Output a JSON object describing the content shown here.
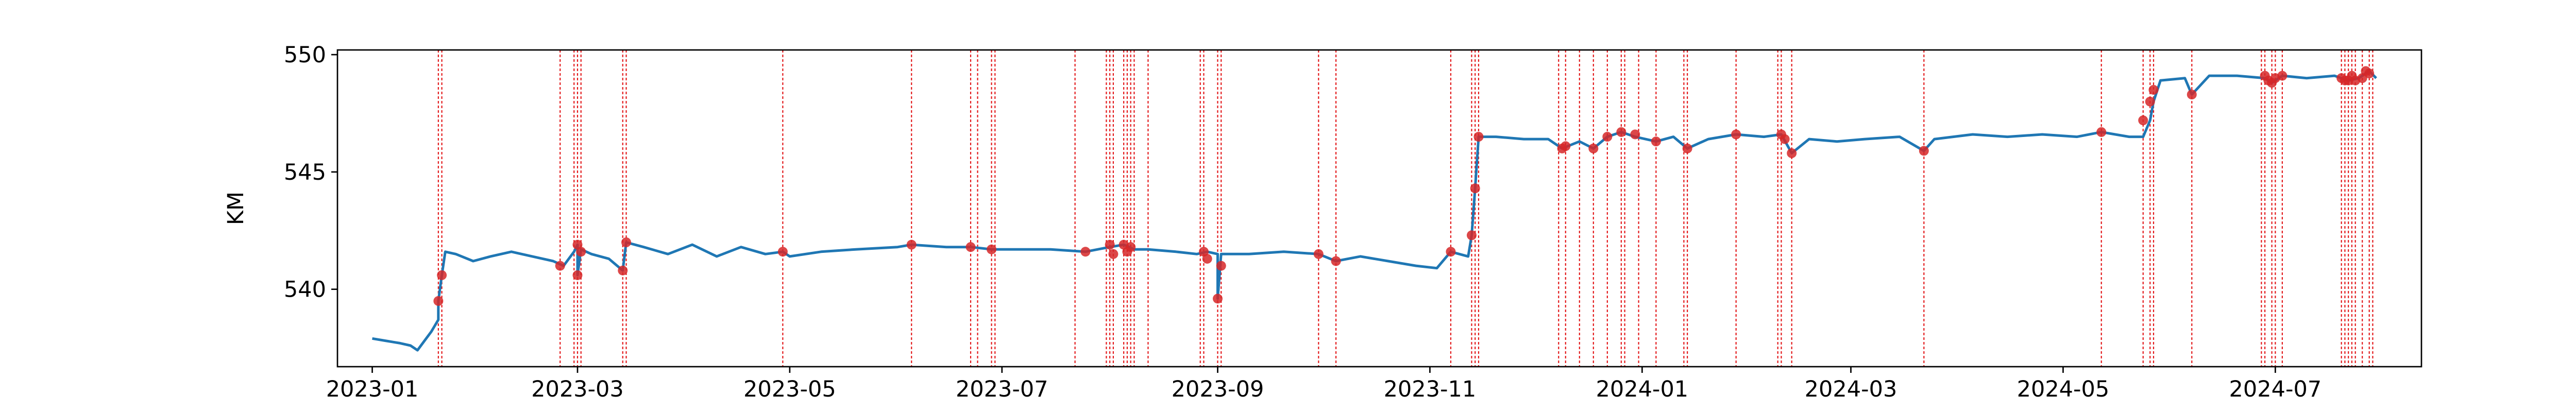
{
  "chart_data": {
    "type": "line",
    "title": "",
    "xlabel": "",
    "ylabel": "KM",
    "x_range": [
      "2022-12-22",
      "2024-08-12"
    ],
    "ylim": [
      536.7,
      550.2
    ],
    "yticks": [
      540,
      545,
      550
    ],
    "ytick_labels": [
      "540",
      "545",
      "550"
    ],
    "xticks": [
      "2023-01-01",
      "2023-03-01",
      "2023-05-01",
      "2023-07-01",
      "2023-09-01",
      "2023-11-01",
      "2024-01-01",
      "2024-03-01",
      "2024-05-01",
      "2024-07-01"
    ],
    "xtick_labels": [
      "2023-01",
      "2023-03",
      "2023-05",
      "2023-07",
      "2023-09",
      "2023-11",
      "2024-01",
      "2024-03",
      "2024-05",
      "2024-07"
    ],
    "grid": false,
    "legend": "none",
    "colors": {
      "line": "#1f77b4",
      "anomaly_point": "#d62728",
      "event_line": "#e31a1c"
    },
    "series": [
      {
        "values": [
          [
            "2023-01-01",
            537.9
          ],
          [
            "2023-01-05",
            537.8
          ],
          [
            "2023-01-09",
            537.7
          ],
          [
            "2023-01-12",
            537.6
          ],
          [
            "2023-01-14",
            537.4
          ],
          [
            "2023-01-16",
            537.8
          ],
          [
            "2023-01-18",
            538.2
          ],
          [
            "2023-01-20",
            538.7
          ],
          [
            "2023-01-20",
            539.5
          ],
          [
            "2023-01-21",
            540.6
          ],
          [
            "2023-01-22",
            541.6
          ],
          [
            "2023-01-25",
            541.5
          ],
          [
            "2023-01-30",
            541.2
          ],
          [
            "2023-02-04",
            541.4
          ],
          [
            "2023-02-10",
            541.6
          ],
          [
            "2023-02-16",
            541.4
          ],
          [
            "2023-02-22",
            541.2
          ],
          [
            "2023-02-25",
            541.0
          ],
          [
            "2023-02-28",
            541.6
          ],
          [
            "2023-03-01",
            541.9
          ],
          [
            "2023-03-01",
            540.6
          ],
          [
            "2023-03-02",
            541.7
          ],
          [
            "2023-03-05",
            541.5
          ],
          [
            "2023-03-10",
            541.3
          ],
          [
            "2023-03-14",
            540.8
          ],
          [
            "2023-03-15",
            542.0
          ],
          [
            "2023-03-20",
            541.8
          ],
          [
            "2023-03-27",
            541.5
          ],
          [
            "2023-04-03",
            541.9
          ],
          [
            "2023-04-10",
            541.4
          ],
          [
            "2023-04-17",
            541.8
          ],
          [
            "2023-04-24",
            541.5
          ],
          [
            "2023-04-29",
            541.6
          ],
          [
            "2023-05-01",
            541.4
          ],
          [
            "2023-05-10",
            541.6
          ],
          [
            "2023-05-20",
            541.7
          ],
          [
            "2023-06-01",
            541.8
          ],
          [
            "2023-06-05",
            541.9
          ],
          [
            "2023-06-15",
            541.8
          ],
          [
            "2023-06-22",
            541.8
          ],
          [
            "2023-06-28",
            541.7
          ],
          [
            "2023-07-05",
            541.7
          ],
          [
            "2023-07-15",
            541.7
          ],
          [
            "2023-07-25",
            541.6
          ],
          [
            "2023-08-01",
            541.8
          ],
          [
            "2023-08-05",
            541.9
          ],
          [
            "2023-08-08",
            541.7
          ],
          [
            "2023-08-12",
            541.7
          ],
          [
            "2023-08-20",
            541.6
          ],
          [
            "2023-08-26",
            541.5
          ],
          [
            "2023-08-29",
            541.6
          ],
          [
            "2023-09-01",
            541.5
          ],
          [
            "2023-09-01",
            539.6
          ],
          [
            "2023-09-02",
            541.5
          ],
          [
            "2023-09-10",
            541.5
          ],
          [
            "2023-09-20",
            541.6
          ],
          [
            "2023-09-30",
            541.5
          ],
          [
            "2023-10-05",
            541.2
          ],
          [
            "2023-10-12",
            541.4
          ],
          [
            "2023-10-20",
            541.2
          ],
          [
            "2023-10-28",
            541.0
          ],
          [
            "2023-11-03",
            540.9
          ],
          [
            "2023-11-07",
            541.6
          ],
          [
            "2023-11-12",
            541.4
          ],
          [
            "2023-11-13",
            542.3
          ],
          [
            "2023-11-14",
            544.3
          ],
          [
            "2023-11-15",
            546.5
          ],
          [
            "2023-11-20",
            546.5
          ],
          [
            "2023-11-28",
            546.4
          ],
          [
            "2023-12-05",
            546.4
          ],
          [
            "2023-12-09",
            546.0
          ],
          [
            "2023-12-14",
            546.3
          ],
          [
            "2023-12-18",
            546.0
          ],
          [
            "2023-12-22",
            546.5
          ],
          [
            "2023-12-26",
            546.7
          ],
          [
            "2023-12-30",
            546.5
          ],
          [
            "2024-01-05",
            546.3
          ],
          [
            "2024-01-10",
            546.5
          ],
          [
            "2024-01-14",
            546.0
          ],
          [
            "2024-01-20",
            546.4
          ],
          [
            "2024-01-28",
            546.6
          ],
          [
            "2024-02-05",
            546.5
          ],
          [
            "2024-02-10",
            546.6
          ],
          [
            "2024-02-13",
            545.8
          ],
          [
            "2024-02-18",
            546.4
          ],
          [
            "2024-02-26",
            546.3
          ],
          [
            "2024-03-05",
            546.4
          ],
          [
            "2024-03-15",
            546.5
          ],
          [
            "2024-03-22",
            545.9
          ],
          [
            "2024-03-25",
            546.4
          ],
          [
            "2024-04-05",
            546.6
          ],
          [
            "2024-04-15",
            546.5
          ],
          [
            "2024-04-25",
            546.6
          ],
          [
            "2024-05-05",
            546.5
          ],
          [
            "2024-05-12",
            546.7
          ],
          [
            "2024-05-20",
            546.5
          ],
          [
            "2024-05-24",
            546.5
          ],
          [
            "2024-05-26",
            547.2
          ],
          [
            "2024-05-27",
            548.0
          ],
          [
            "2024-05-29",
            548.9
          ],
          [
            "2024-06-05",
            549.0
          ],
          [
            "2024-06-07",
            548.3
          ],
          [
            "2024-06-12",
            549.1
          ],
          [
            "2024-06-20",
            549.1
          ],
          [
            "2024-06-28",
            549.0
          ],
          [
            "2024-06-30",
            548.8
          ],
          [
            "2024-07-03",
            549.1
          ],
          [
            "2024-07-10",
            549.0
          ],
          [
            "2024-07-18",
            549.1
          ],
          [
            "2024-07-22",
            548.9
          ],
          [
            "2024-07-25",
            549.0
          ],
          [
            "2024-07-28",
            549.3
          ],
          [
            "2024-07-30",
            549.0
          ]
        ]
      }
    ],
    "anomaly_points": [
      [
        "2023-01-20",
        539.5
      ],
      [
        "2023-01-21",
        540.6
      ],
      [
        "2023-02-24",
        541.0
      ],
      [
        "2023-03-01",
        541.9
      ],
      [
        "2023-03-01",
        540.6
      ],
      [
        "2023-03-02",
        541.6
      ],
      [
        "2023-03-14",
        540.8
      ],
      [
        "2023-03-15",
        542.0
      ],
      [
        "2023-04-29",
        541.6
      ],
      [
        "2023-06-05",
        541.9
      ],
      [
        "2023-06-22",
        541.8
      ],
      [
        "2023-06-28",
        541.7
      ],
      [
        "2023-07-25",
        541.6
      ],
      [
        "2023-08-01",
        541.9
      ],
      [
        "2023-08-02",
        541.5
      ],
      [
        "2023-08-05",
        541.9
      ],
      [
        "2023-08-06",
        541.6
      ],
      [
        "2023-08-07",
        541.8
      ],
      [
        "2023-08-28",
        541.6
      ],
      [
        "2023-08-29",
        541.3
      ],
      [
        "2023-09-01",
        539.6
      ],
      [
        "2023-09-02",
        541.0
      ],
      [
        "2023-09-30",
        541.5
      ],
      [
        "2023-10-05",
        541.2
      ],
      [
        "2023-11-07",
        541.6
      ],
      [
        "2023-11-13",
        542.3
      ],
      [
        "2023-11-14",
        544.3
      ],
      [
        "2023-11-15",
        546.5
      ],
      [
        "2023-12-09",
        546.0
      ],
      [
        "2023-12-10",
        546.1
      ],
      [
        "2023-12-18",
        546.0
      ],
      [
        "2023-12-22",
        546.5
      ],
      [
        "2023-12-26",
        546.7
      ],
      [
        "2023-12-30",
        546.6
      ],
      [
        "2024-01-05",
        546.3
      ],
      [
        "2024-01-14",
        546.0
      ],
      [
        "2024-01-28",
        546.6
      ],
      [
        "2024-02-10",
        546.6
      ],
      [
        "2024-02-11",
        546.4
      ],
      [
        "2024-02-13",
        545.8
      ],
      [
        "2024-03-22",
        545.9
      ],
      [
        "2024-05-12",
        546.7
      ],
      [
        "2024-05-24",
        547.2
      ],
      [
        "2024-05-26",
        548.0
      ],
      [
        "2024-05-27",
        548.5
      ],
      [
        "2024-06-07",
        548.3
      ],
      [
        "2024-06-28",
        549.1
      ],
      [
        "2024-06-29",
        548.9
      ],
      [
        "2024-06-30",
        548.8
      ],
      [
        "2024-07-01",
        549.0
      ],
      [
        "2024-07-03",
        549.1
      ],
      [
        "2024-07-20",
        549.0
      ],
      [
        "2024-07-21",
        548.9
      ],
      [
        "2024-07-22",
        548.9
      ],
      [
        "2024-07-23",
        549.1
      ],
      [
        "2024-07-24",
        548.9
      ],
      [
        "2024-07-26",
        549.0
      ],
      [
        "2024-07-27",
        549.3
      ],
      [
        "2024-07-28",
        549.2
      ]
    ],
    "event_lines": [
      "2023-01-20",
      "2023-01-21",
      "2023-02-24",
      "2023-02-28",
      "2023-03-01",
      "2023-03-02",
      "2023-03-14",
      "2023-03-15",
      "2023-04-29",
      "2023-06-05",
      "2023-06-22",
      "2023-06-24",
      "2023-06-28",
      "2023-06-29",
      "2023-07-22",
      "2023-07-31",
      "2023-08-01",
      "2023-08-02",
      "2023-08-05",
      "2023-08-06",
      "2023-08-07",
      "2023-08-08",
      "2023-08-12",
      "2023-08-27",
      "2023-08-28",
      "2023-09-01",
      "2023-09-02",
      "2023-09-30",
      "2023-10-05",
      "2023-11-07",
      "2023-11-13",
      "2023-11-14",
      "2023-11-15",
      "2023-12-08",
      "2023-12-10",
      "2023-12-14",
      "2023-12-18",
      "2023-12-22",
      "2023-12-26",
      "2023-12-27",
      "2023-12-31",
      "2024-01-05",
      "2024-01-13",
      "2024-01-14",
      "2024-01-28",
      "2024-02-09",
      "2024-02-10",
      "2024-02-13",
      "2024-03-22",
      "2024-05-12",
      "2024-05-24",
      "2024-05-26",
      "2024-05-27",
      "2024-06-07",
      "2024-06-27",
      "2024-06-28",
      "2024-06-30",
      "2024-07-01",
      "2024-07-03",
      "2024-07-20",
      "2024-07-21",
      "2024-07-22",
      "2024-07-23",
      "2024-07-24",
      "2024-07-26",
      "2024-07-28",
      "2024-07-29"
    ]
  }
}
